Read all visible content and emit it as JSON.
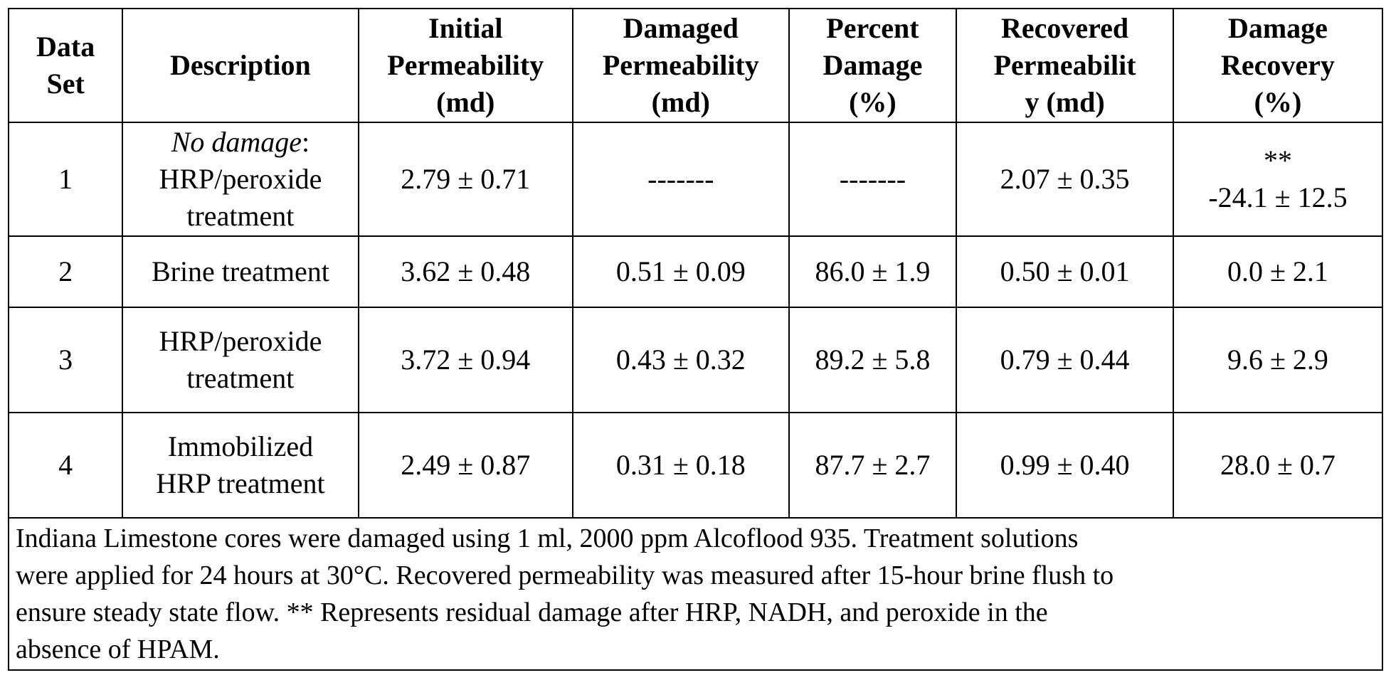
{
  "table": {
    "headers": [
      {
        "lines": [
          "Data",
          "Set"
        ]
      },
      {
        "lines": [
          "Description"
        ]
      },
      {
        "lines": [
          "Initial",
          "Permeability",
          "(md)"
        ]
      },
      {
        "lines": [
          "Damaged",
          "Permeability",
          "(md)"
        ]
      },
      {
        "lines": [
          "Percent",
          "Damage",
          "(%)"
        ]
      },
      {
        "lines": [
          "Recovered",
          "Permeabilit",
          "y (md)"
        ]
      },
      {
        "lines": [
          "Damage",
          "Recovery",
          "(%)"
        ]
      }
    ],
    "rows": [
      {
        "data_set": "1",
        "description_italic": "No damage",
        "description_colon": ":",
        "description_lines": [
          "HRP/peroxide",
          "treatment"
        ],
        "initial": "2.79 ± 0.71",
        "damaged": "-------",
        "percent": "-------",
        "recovered": "2.07 ± 0.35",
        "recovery_note": "**",
        "recovery": "-24.1 ± 12.5"
      },
      {
        "data_set": "2",
        "description_lines": [
          "Brine treatment"
        ],
        "initial": "3.62 ± 0.48",
        "damaged": "0.51 ± 0.09",
        "percent": "86.0 ± 1.9",
        "recovered": "0.50 ± 0.01",
        "recovery": "0.0 ± 2.1"
      },
      {
        "data_set": "3",
        "description_lines": [
          "HRP/peroxide",
          "treatment"
        ],
        "initial": "3.72 ± 0.94",
        "damaged": "0.43 ± 0.32",
        "percent": "89.2 ± 5.8",
        "recovered": "0.79 ± 0.44",
        "recovery": "9.6 ± 2.9"
      },
      {
        "data_set": "4",
        "description_lines": [
          "Immobilized",
          "HRP treatment"
        ],
        "initial": "2.49 ± 0.87",
        "damaged": "0.31 ± 0.18",
        "percent": "87.7 ± 2.7",
        "recovered": "0.99 ± 0.40",
        "recovery": "28.0 ± 0.7"
      }
    ],
    "note_lines": [
      "Indiana Limestone cores were damaged using 1 ml, 2000 ppm Alcoflood 935. Treatment solutions",
      "were applied for 24 hours at 30°C. Recovered permeability was measured after 15-hour brine flush to",
      "ensure steady state flow.  ** Represents residual damage after HRP, NADH, and peroxide in the",
      "absence of HPAM."
    ]
  }
}
